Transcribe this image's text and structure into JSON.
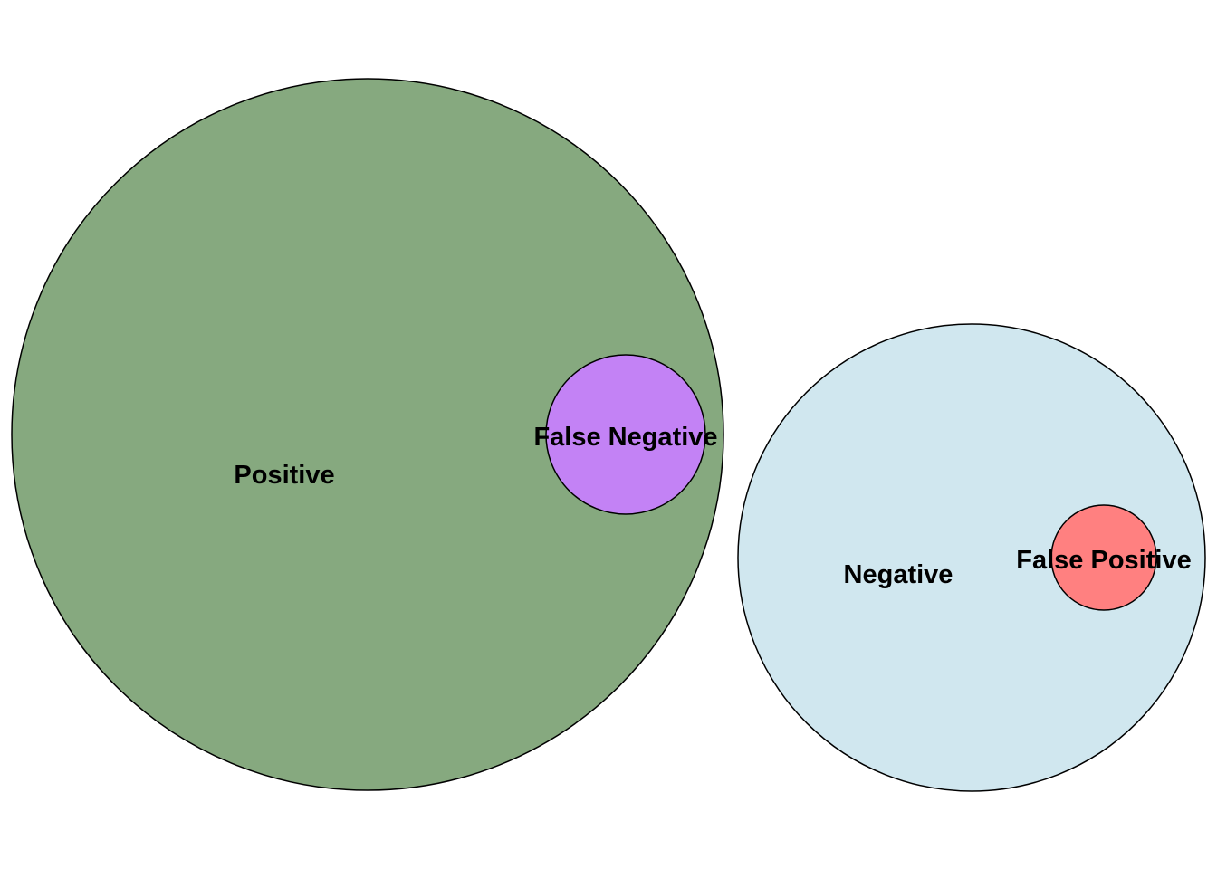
{
  "diagram": {
    "type": "euler",
    "sets": [
      {
        "id": "positive",
        "label": "Positive",
        "color": "#86a97f"
      },
      {
        "id": "false_negative",
        "label": "False Negative",
        "color": "#c382f5",
        "within": "positive"
      },
      {
        "id": "negative",
        "label": "Negative",
        "color": "#d0e7ef"
      },
      {
        "id": "false_positive",
        "label": "False Positive",
        "color": "#ff8080",
        "within": "negative"
      }
    ]
  }
}
